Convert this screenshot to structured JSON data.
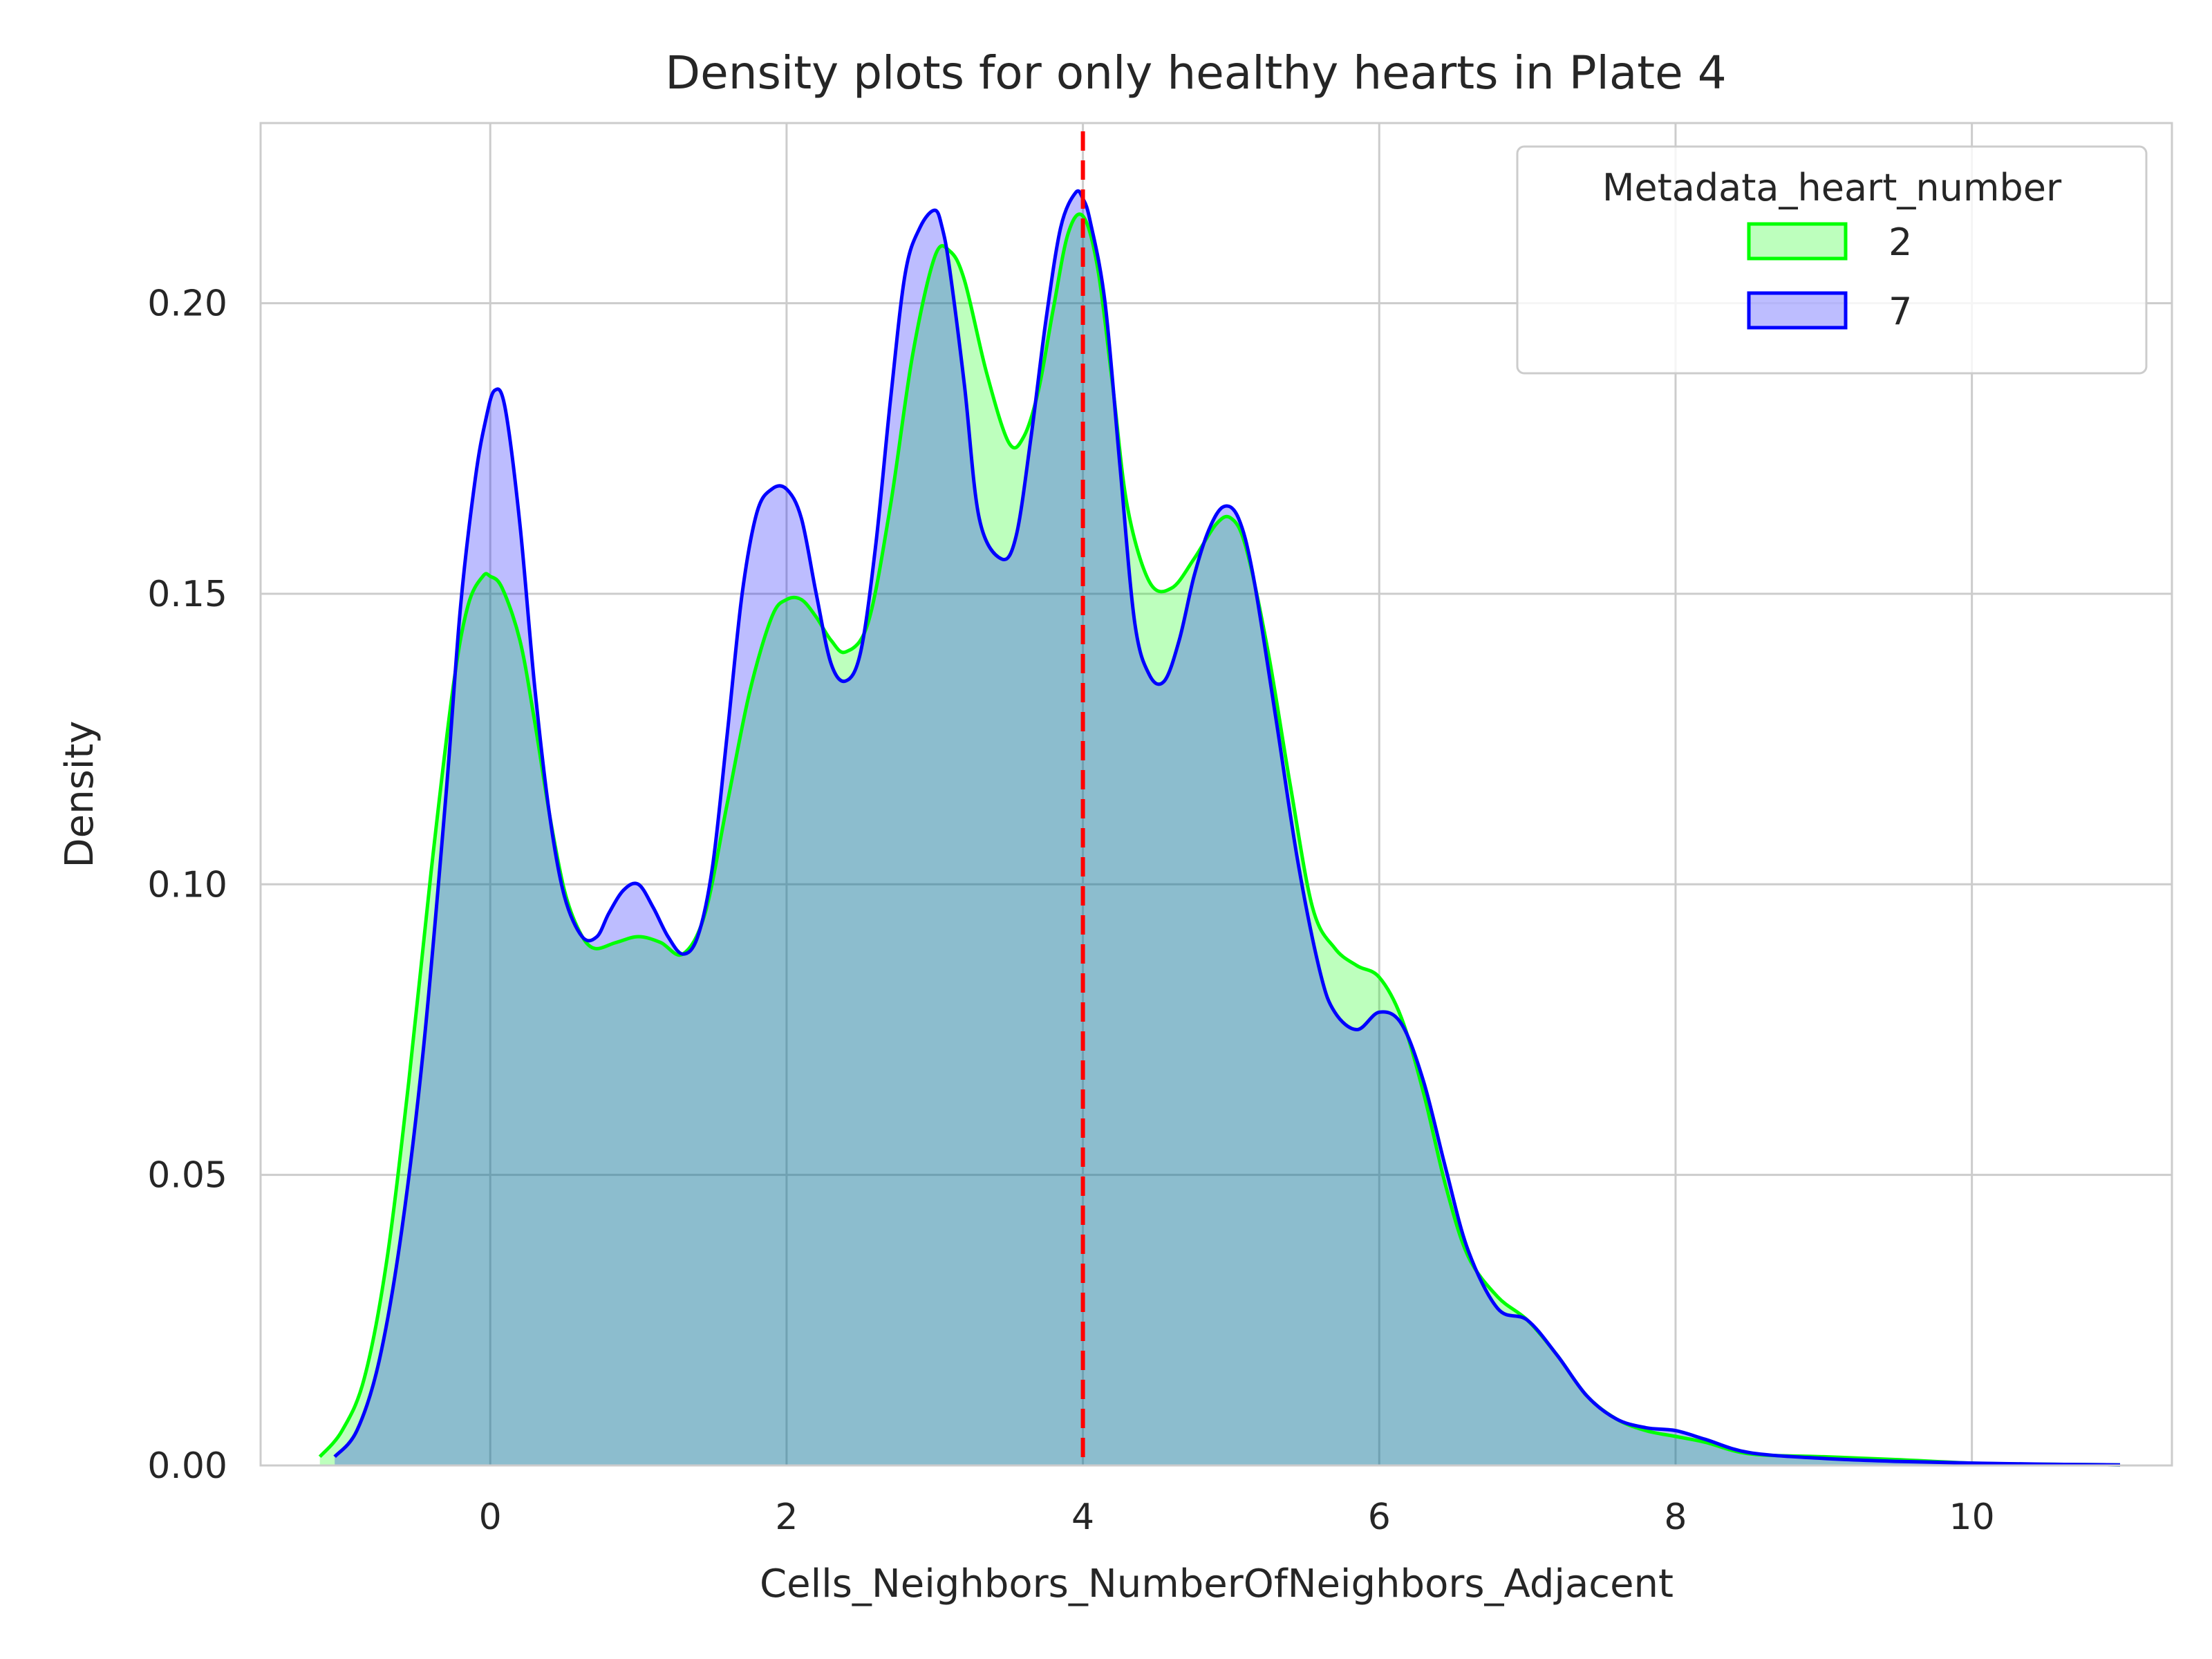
{
  "chart_data": {
    "type": "area",
    "title": "Density plots for only healthy hearts in Plate 4",
    "xlabel": "Cells_Neighbors_NumberOfNeighbors_Adjacent",
    "ylabel": "Density",
    "xlim": [
      -1.55,
      11.35
    ],
    "ylim": [
      0,
      0.231
    ],
    "xticks": [
      0,
      2,
      4,
      6,
      8,
      10
    ],
    "xtick_labels": [
      "0",
      "2",
      "4",
      "6",
      "8",
      "10"
    ],
    "yticks": [
      0.0,
      0.05,
      0.1,
      0.15,
      0.2
    ],
    "ytick_labels": [
      "0.00",
      "0.05",
      "0.10",
      "0.15",
      "0.20"
    ],
    "grid": true,
    "legend": {
      "title": "Metadata_heart_number",
      "position": "top-right"
    },
    "vline": {
      "x": 4.0,
      "color": "#ff0000",
      "style": "dashed"
    },
    "series": [
      {
        "name": "2",
        "color": "#00ff00",
        "x": [
          -1.15,
          -1.0,
          -0.85,
          -0.7,
          -0.55,
          -0.4,
          -0.25,
          -0.15,
          -0.05,
          0.0,
          0.08,
          0.2,
          0.3,
          0.4,
          0.5,
          0.6,
          0.7,
          0.85,
          1.0,
          1.15,
          1.3,
          1.45,
          1.6,
          1.75,
          1.9,
          2.0,
          2.1,
          2.2,
          2.3,
          2.4,
          2.55,
          2.7,
          2.85,
          3.0,
          3.1,
          3.2,
          3.35,
          3.5,
          3.6,
          3.7,
          3.8,
          3.9,
          4.0,
          4.1,
          4.2,
          4.3,
          4.45,
          4.6,
          4.75,
          4.9,
          5.0,
          5.1,
          5.25,
          5.4,
          5.55,
          5.7,
          5.85,
          6.0,
          6.15,
          6.3,
          6.45,
          6.6,
          6.8,
          7.0,
          7.2,
          7.4,
          7.6,
          7.8,
          8.0,
          8.2,
          8.5,
          9.0,
          9.5,
          10.0,
          10.5,
          11.0
        ],
        "y": [
          0.0015,
          0.006,
          0.015,
          0.035,
          0.066,
          0.102,
          0.134,
          0.148,
          0.153,
          0.153,
          0.151,
          0.142,
          0.128,
          0.112,
          0.099,
          0.092,
          0.089,
          0.09,
          0.091,
          0.09,
          0.088,
          0.095,
          0.114,
          0.133,
          0.146,
          0.149,
          0.149,
          0.146,
          0.142,
          0.14,
          0.145,
          0.165,
          0.191,
          0.208,
          0.209,
          0.204,
          0.188,
          0.176,
          0.177,
          0.185,
          0.199,
          0.212,
          0.215,
          0.206,
          0.186,
          0.165,
          0.152,
          0.151,
          0.156,
          0.162,
          0.163,
          0.158,
          0.14,
          0.117,
          0.096,
          0.089,
          0.086,
          0.084,
          0.077,
          0.064,
          0.048,
          0.036,
          0.029,
          0.025,
          0.019,
          0.012,
          0.008,
          0.006,
          0.005,
          0.004,
          0.002,
          0.0015,
          0.001,
          0.0004,
          0.0002,
          0.0001
        ]
      },
      {
        "name": "7",
        "color": "#0000ff",
        "x": [
          -1.05,
          -0.9,
          -0.75,
          -0.6,
          -0.45,
          -0.3,
          -0.2,
          -0.1,
          -0.03,
          0.03,
          0.1,
          0.2,
          0.3,
          0.4,
          0.5,
          0.62,
          0.72,
          0.8,
          0.9,
          1.0,
          1.1,
          1.2,
          1.3,
          1.4,
          1.5,
          1.6,
          1.7,
          1.8,
          1.9,
          2.0,
          2.1,
          2.2,
          2.3,
          2.4,
          2.5,
          2.6,
          2.7,
          2.8,
          2.9,
          3.0,
          3.05,
          3.1,
          3.2,
          3.3,
          3.45,
          3.55,
          3.65,
          3.75,
          3.85,
          3.95,
          4.0,
          4.05,
          4.15,
          4.25,
          4.35,
          4.45,
          4.55,
          4.65,
          4.75,
          4.85,
          4.95,
          5.05,
          5.15,
          5.3,
          5.45,
          5.6,
          5.7,
          5.85,
          6.0,
          6.15,
          6.3,
          6.45,
          6.6,
          6.8,
          7.0,
          7.2,
          7.4,
          7.6,
          7.8,
          8.0,
          8.2,
          8.5,
          9.0,
          9.5,
          10.0,
          10.5,
          11.0
        ],
        "y": [
          0.0015,
          0.006,
          0.018,
          0.04,
          0.072,
          0.115,
          0.148,
          0.17,
          0.18,
          0.185,
          0.182,
          0.162,
          0.134,
          0.112,
          0.098,
          0.091,
          0.091,
          0.095,
          0.099,
          0.1,
          0.096,
          0.091,
          0.088,
          0.091,
          0.103,
          0.126,
          0.15,
          0.164,
          0.168,
          0.168,
          0.163,
          0.15,
          0.138,
          0.135,
          0.14,
          0.158,
          0.183,
          0.205,
          0.213,
          0.216,
          0.213,
          0.206,
          0.186,
          0.163,
          0.156,
          0.16,
          0.177,
          0.197,
          0.213,
          0.219,
          0.218,
          0.214,
          0.2,
          0.172,
          0.145,
          0.136,
          0.135,
          0.142,
          0.153,
          0.161,
          0.165,
          0.163,
          0.153,
          0.129,
          0.104,
          0.085,
          0.078,
          0.075,
          0.078,
          0.076,
          0.066,
          0.051,
          0.037,
          0.027,
          0.025,
          0.019,
          0.012,
          0.008,
          0.0065,
          0.006,
          0.0045,
          0.0022,
          0.0012,
          0.0007,
          0.0004,
          0.0002,
          0.0001
        ]
      }
    ]
  }
}
